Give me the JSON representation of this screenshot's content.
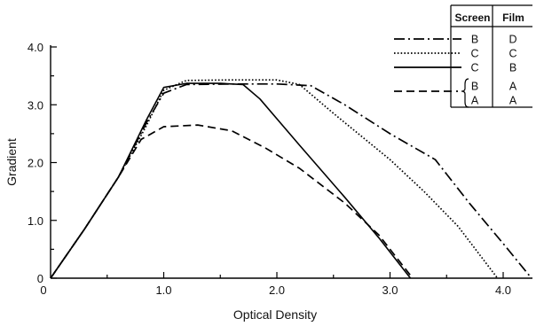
{
  "chart_data": {
    "type": "line",
    "title": "",
    "xlabel": "Optical Density",
    "ylabel": "Gradient",
    "xlim": [
      0,
      4.3
    ],
    "ylim": [
      0,
      4.0
    ],
    "x_ticks": [
      {
        "value": 0,
        "label": "0"
      },
      {
        "value": 1.0,
        "label": "1.0"
      },
      {
        "value": 2.0,
        "label": "2.0"
      },
      {
        "value": 3.0,
        "label": "3.0"
      },
      {
        "value": 4.0,
        "label": "4.0"
      }
    ],
    "y_ticks": [
      {
        "value": 0,
        "label": "0"
      },
      {
        "value": 1.0,
        "label": "1.0"
      },
      {
        "value": 2.0,
        "label": "2.0"
      },
      {
        "value": 3.0,
        "label": "3.0"
      },
      {
        "value": 4.0,
        "label": "4.0"
      }
    ],
    "grid": false,
    "legend_position": "top-right",
    "legend": {
      "headers": [
        "Screen",
        "Film"
      ],
      "rows": [
        {
          "screen": "B",
          "film": "D",
          "style": "dashdot"
        },
        {
          "screen": "C",
          "film": "C",
          "style": "dotted"
        },
        {
          "screen": "C",
          "film": "B",
          "style": "solid"
        },
        {
          "screen": "B",
          "film": "A",
          "style": "dashed",
          "group": 1
        },
        {
          "screen": "A",
          "film": "A",
          "style": "dashed",
          "group": 1
        }
      ]
    },
    "series": [
      {
        "style": "dashdot",
        "points": [
          [
            0,
            0
          ],
          [
            0.3,
            0.85
          ],
          [
            0.6,
            1.75
          ],
          [
            0.85,
            2.7
          ],
          [
            1.0,
            3.2
          ],
          [
            1.2,
            3.35
          ],
          [
            1.6,
            3.36
          ],
          [
            2.0,
            3.36
          ],
          [
            2.3,
            3.33
          ],
          [
            2.6,
            3.0
          ],
          [
            3.0,
            2.5
          ],
          [
            3.4,
            2.05
          ],
          [
            3.7,
            1.3
          ],
          [
            4.0,
            0.6
          ],
          [
            4.25,
            0
          ]
        ]
      },
      {
        "style": "dotted",
        "points": [
          [
            0,
            0
          ],
          [
            0.3,
            0.85
          ],
          [
            0.6,
            1.75
          ],
          [
            0.85,
            2.65
          ],
          [
            1.0,
            3.25
          ],
          [
            1.2,
            3.42
          ],
          [
            1.6,
            3.43
          ],
          [
            2.0,
            3.43
          ],
          [
            2.2,
            3.35
          ],
          [
            2.5,
            2.85
          ],
          [
            3.0,
            2.05
          ],
          [
            3.3,
            1.5
          ],
          [
            3.6,
            0.9
          ],
          [
            3.95,
            0
          ]
        ]
      },
      {
        "style": "solid",
        "points": [
          [
            0,
            0
          ],
          [
            0.3,
            0.85
          ],
          [
            0.6,
            1.75
          ],
          [
            0.85,
            2.75
          ],
          [
            1.0,
            3.3
          ],
          [
            1.2,
            3.37
          ],
          [
            1.5,
            3.37
          ],
          [
            1.7,
            3.35
          ],
          [
            1.85,
            3.1
          ],
          [
            2.2,
            2.3
          ],
          [
            2.6,
            1.4
          ],
          [
            2.9,
            0.7
          ],
          [
            3.18,
            0
          ]
        ]
      },
      {
        "style": "dashed",
        "points": [
          [
            0,
            0
          ],
          [
            0.3,
            0.85
          ],
          [
            0.6,
            1.75
          ],
          [
            0.8,
            2.4
          ],
          [
            1.0,
            2.62
          ],
          [
            1.3,
            2.65
          ],
          [
            1.6,
            2.55
          ],
          [
            1.9,
            2.25
          ],
          [
            2.2,
            1.9
          ],
          [
            2.6,
            1.3
          ],
          [
            2.9,
            0.75
          ],
          [
            3.2,
            0
          ]
        ]
      }
    ]
  }
}
